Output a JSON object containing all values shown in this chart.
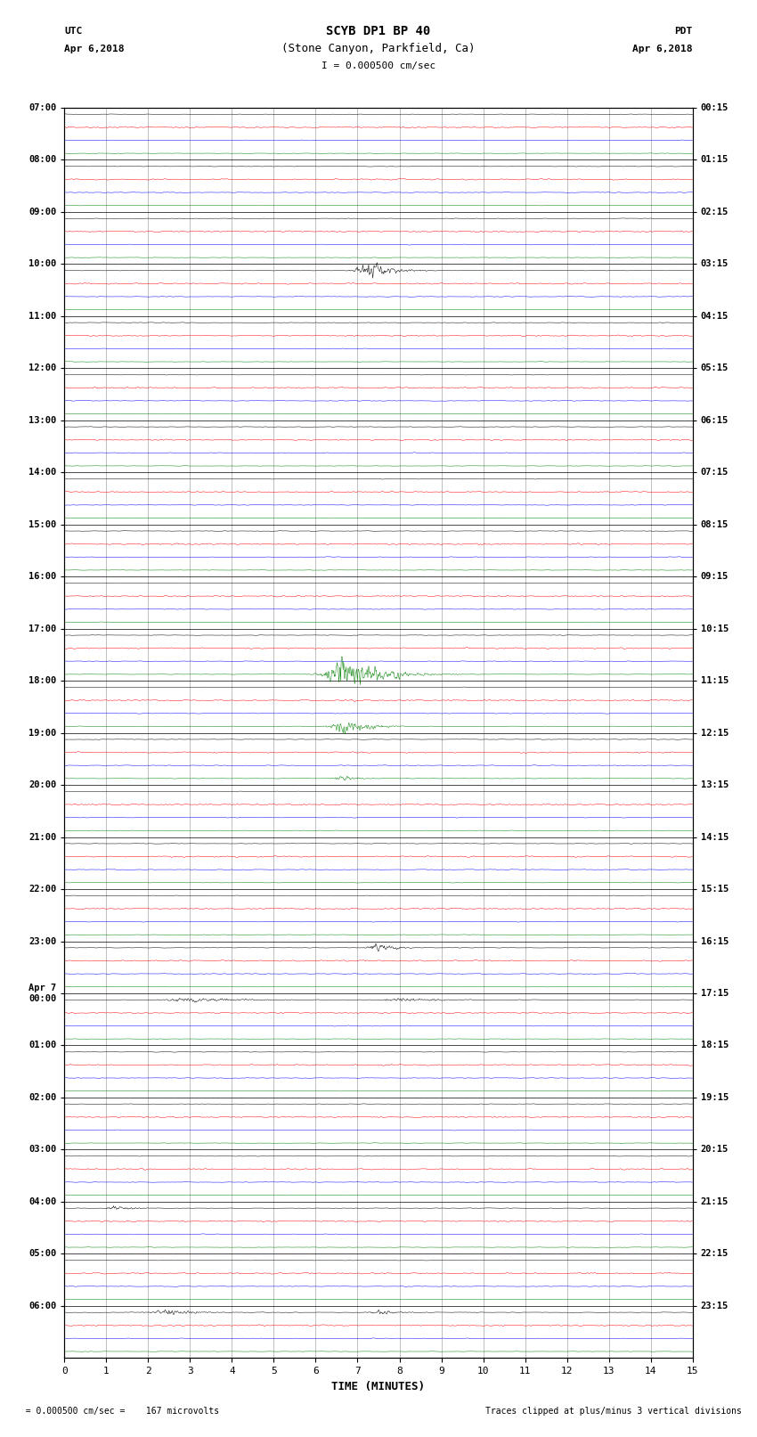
{
  "title_line1": "SCYB DP1 BP 40",
  "title_line2": "(Stone Canyon, Parkfield, Ca)",
  "scale_label": "I = 0.000500 cm/sec",
  "utc_label": "UTC",
  "utc_date": "Apr 6,2018",
  "pdt_label": "PDT",
  "pdt_date": "Apr 6,2018",
  "xlabel": "TIME (MINUTES)",
  "footer_left": "  = 0.000500 cm/sec =    167 microvolts",
  "footer_right": "Traces clipped at plus/minus 3 vertical divisions",
  "trace_colors": [
    "black",
    "red",
    "blue",
    "green"
  ],
  "xlim": [
    0,
    15
  ],
  "background_color": "white",
  "grid_color": "#808080",
  "utc_times_hourly": [
    "07:00",
    "08:00",
    "09:00",
    "10:00",
    "11:00",
    "12:00",
    "13:00",
    "14:00",
    "15:00",
    "16:00",
    "17:00",
    "18:00",
    "19:00",
    "20:00",
    "21:00",
    "22:00",
    "23:00",
    "Apr 7\n00:00",
    "01:00",
    "02:00",
    "03:00",
    "04:00",
    "05:00",
    "06:00"
  ],
  "pdt_times_hourly": [
    "00:15",
    "01:15",
    "02:15",
    "03:15",
    "04:15",
    "05:15",
    "06:15",
    "07:15",
    "08:15",
    "09:15",
    "10:15",
    "11:15",
    "12:15",
    "13:15",
    "14:15",
    "15:15",
    "16:15",
    "17:15",
    "18:15",
    "19:15",
    "20:15",
    "21:15",
    "22:15",
    "23:15"
  ],
  "num_hours": 24,
  "traces_per_hour": 4,
  "noise_amp": 0.025,
  "red_noise_amp": 0.04,
  "blue_noise_amp": 0.03,
  "green_noise_amp": 0.02
}
